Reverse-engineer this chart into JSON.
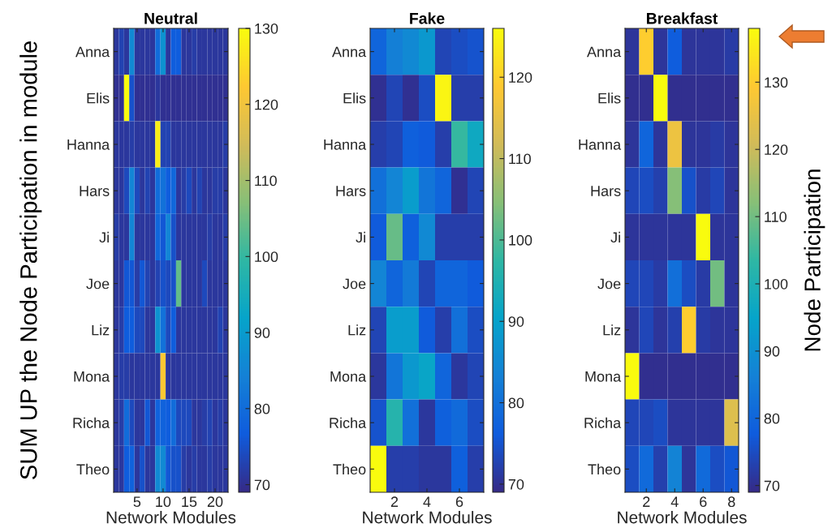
{
  "chart_data": [
    {
      "type": "heatmap",
      "title": "Neutral",
      "xlabel": "Network Modules",
      "ylabel": "SUM UP the Node Participation in module",
      "categories": [
        null,
        null,
        null,
        null,
        "5",
        null,
        null,
        null,
        null,
        "10",
        null,
        null,
        null,
        null,
        "15",
        null,
        null,
        null,
        null,
        "20",
        null,
        null
      ],
      "y_categories": [
        "Anna",
        "Elis",
        "Hanna",
        "Hars",
        "Ji",
        "Joe",
        "Liz",
        "Mona",
        "Richa",
        "Theo"
      ],
      "cells": [
        [
          71,
          73,
          71,
          86,
          71,
          71,
          71,
          71,
          80,
          88,
          71,
          77,
          77,
          71,
          71,
          72,
          71,
          71,
          71,
          71,
          71,
          71
        ],
        [
          70,
          70,
          130,
          75,
          70,
          70,
          70,
          70,
          71,
          70,
          70,
          70,
          70,
          70,
          70,
          70,
          70,
          70,
          70,
          70,
          70,
          70
        ],
        [
          71,
          71,
          71,
          72,
          71,
          71,
          71,
          71,
          128,
          73,
          73,
          71,
          71,
          71,
          71,
          71,
          71,
          71,
          71,
          71,
          71,
          72
        ],
        [
          71,
          71,
          74,
          85,
          74,
          71,
          73,
          71,
          80,
          81,
          77,
          79,
          71,
          72,
          74,
          71,
          73,
          71,
          71,
          72,
          72,
          71
        ],
        [
          72,
          71,
          71,
          85,
          71,
          71,
          71,
          71,
          79,
          76,
          85,
          75,
          71,
          71,
          71,
          71,
          71,
          71,
          72,
          71,
          71,
          72
        ],
        [
          71,
          71,
          76,
          76,
          72,
          76,
          73,
          71,
          73,
          75,
          74,
          75,
          104,
          71,
          71,
          71,
          71,
          74,
          71,
          71,
          71,
          71
        ],
        [
          71,
          72,
          77,
          77,
          74,
          74,
          71,
          71,
          88,
          81,
          74,
          77,
          71,
          71,
          71,
          71,
          71,
          71,
          71,
          71,
          73,
          71
        ],
        [
          71,
          72,
          72,
          71,
          71,
          71,
          71,
          71,
          71,
          122,
          71,
          71,
          71,
          71,
          71,
          71,
          71,
          71,
          71,
          71,
          71,
          71
        ],
        [
          71,
          72,
          80,
          74,
          71,
          71,
          76,
          71,
          78,
          78,
          77,
          80,
          74,
          74,
          74,
          71,
          71,
          72,
          73,
          71,
          72,
          71
        ],
        [
          71,
          71,
          77,
          78,
          71,
          75,
          71,
          71,
          86,
          86,
          76,
          75,
          75,
          72,
          71,
          72,
          71,
          71,
          72,
          71,
          71,
          71
        ]
      ],
      "clim": [
        69,
        130
      ],
      "cticks": [
        70,
        80,
        90,
        100,
        110,
        120,
        130
      ]
    },
    {
      "type": "heatmap",
      "title": "Fake",
      "xlabel": "Network Modules",
      "categories": [
        null,
        "2",
        null,
        "4",
        null,
        "6",
        null
      ],
      "y_categories": [
        "Anna",
        "Elis",
        "Hanna",
        "Hars",
        "Ji",
        "Joe",
        "Liz",
        "Mona",
        "Richa",
        "Theo"
      ],
      "cells": [
        [
          78,
          83,
          85,
          88,
          73,
          74,
          75
        ],
        [
          70,
          73,
          70,
          74,
          125,
          72,
          72
        ],
        [
          72,
          73,
          77,
          76,
          72,
          98,
          92
        ],
        [
          80,
          84,
          89,
          81,
          78,
          70,
          73
        ],
        [
          76,
          102,
          77,
          85,
          72,
          72,
          72
        ],
        [
          84,
          78,
          82,
          73,
          78,
          78,
          76
        ],
        [
          73,
          89,
          89,
          76,
          72,
          80,
          74
        ],
        [
          71,
          81,
          88,
          91,
          78,
          71,
          73
        ],
        [
          75,
          96,
          80,
          71,
          77,
          79,
          74
        ],
        [
          126,
          72,
          72,
          71,
          71,
          77,
          72
        ]
      ],
      "clim": [
        69,
        126
      ],
      "cticks": [
        70,
        80,
        90,
        100,
        110,
        120
      ]
    },
    {
      "type": "heatmap",
      "title": "Breakfast",
      "xlabel": "Network Modules",
      "clabel": "Node Participation",
      "categories": [
        null,
        "2",
        null,
        "4",
        null,
        "6",
        null,
        "8"
      ],
      "y_categories": [
        "Anna",
        "Elis",
        "Hanna",
        "Hars",
        "Ji",
        "Joe",
        "Liz",
        "Mona",
        "Richa",
        "Theo"
      ],
      "cells": [
        [
          71,
          130,
          71,
          78,
          71,
          71,
          71,
          72
        ],
        [
          70,
          70,
          138,
          70,
          70,
          70,
          70,
          70
        ],
        [
          71,
          80,
          71,
          126,
          71,
          71,
          72,
          71
        ],
        [
          74,
          75,
          73,
          112,
          76,
          72,
          74,
          71
        ],
        [
          71,
          71,
          71,
          71,
          71,
          138,
          71,
          71
        ],
        [
          74,
          74,
          72,
          82,
          75,
          72,
          110,
          71
        ],
        [
          71,
          74,
          71,
          73,
          130,
          72,
          71,
          71
        ],
        [
          138,
          70,
          70,
          70,
          70,
          70,
          70,
          70
        ],
        [
          74,
          74,
          75,
          71,
          71,
          71,
          71,
          123
        ],
        [
          75,
          81,
          73,
          87,
          71,
          81,
          75,
          77
        ]
      ],
      "clim": [
        69,
        138
      ],
      "cticks": [
        70,
        80,
        90,
        100,
        110,
        120,
        130
      ]
    }
  ]
}
